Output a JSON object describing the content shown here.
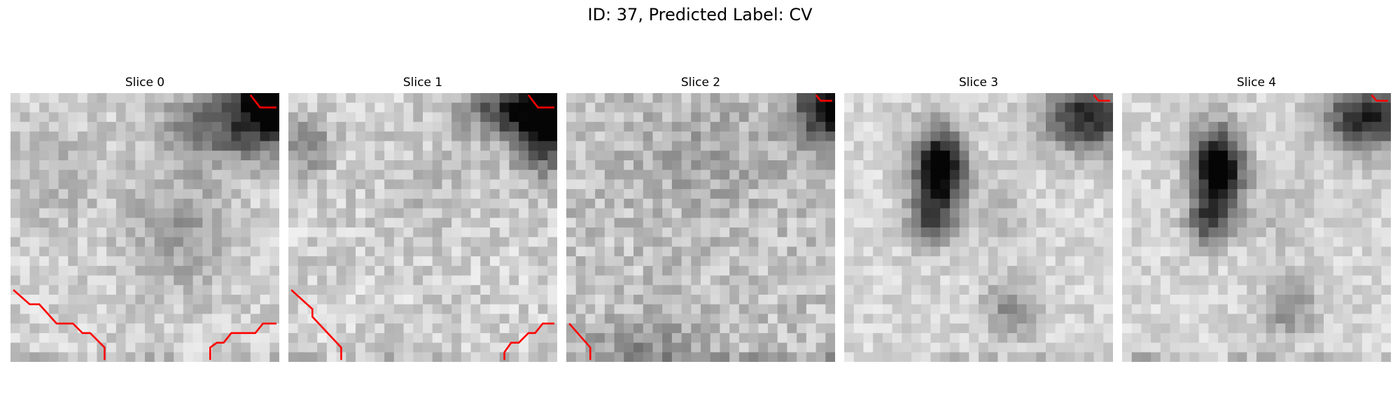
{
  "figure": {
    "title": "ID: 37, Predicted Label: CV"
  },
  "panels": [
    {
      "title": "Slice 0"
    },
    {
      "title": "Slice 1"
    },
    {
      "title": "Slice 2"
    },
    {
      "title": "Slice 3"
    },
    {
      "title": "Slice 4"
    }
  ],
  "colors": {
    "contour": "#ff0000",
    "background": "#ffffff"
  }
}
